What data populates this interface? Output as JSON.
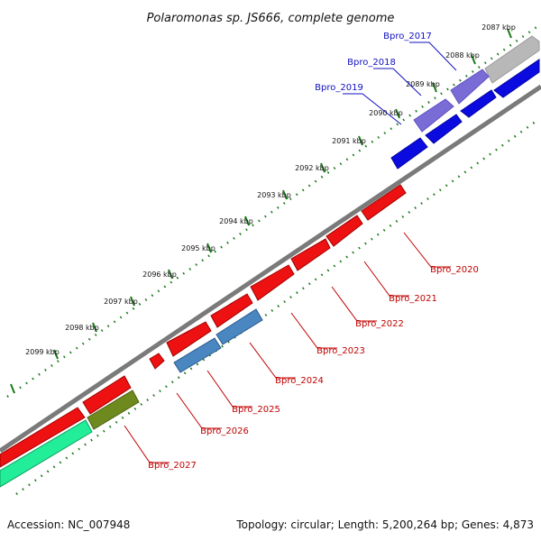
{
  "title": "Polaromonas sp. JS666, complete genome",
  "footer": {
    "accession": "Accession: NC_007948",
    "summary": "Topology: circular; Length: 5,200,264 bp; Genes: 4,873"
  },
  "colors": {
    "backbone": "#7a7a7a",
    "tick": "#1a7a1a",
    "forward_label": "#1010c0",
    "reverse_label": "#c00000"
  },
  "ticks": [
    {
      "label": "2087 kbp"
    },
    {
      "label": "2088 kbp"
    },
    {
      "label": "2089 kbp"
    },
    {
      "label": "2090 kbp"
    },
    {
      "label": "2091 kbp"
    },
    {
      "label": "2092 kbp"
    },
    {
      "label": "2093 kbp"
    },
    {
      "label": "2094 kbp"
    },
    {
      "label": "2095 kbp"
    },
    {
      "label": "2096 kbp"
    },
    {
      "label": "2097 kbp"
    },
    {
      "label": "2098 kbp"
    },
    {
      "label": "2099 kbp"
    }
  ],
  "gene_labels": [
    {
      "text": "Bpro_2017",
      "strand": "forward"
    },
    {
      "text": "Bpro_2018",
      "strand": "forward"
    },
    {
      "text": "Bpro_2019",
      "strand": "forward"
    },
    {
      "text": "Bpro_2020",
      "strand": "reverse"
    },
    {
      "text": "Bpro_2021",
      "strand": "reverse"
    },
    {
      "text": "Bpro_2022",
      "strand": "reverse"
    },
    {
      "text": "Bpro_2023",
      "strand": "reverse"
    },
    {
      "text": "Bpro_2024",
      "strand": "reverse"
    },
    {
      "text": "Bpro_2025",
      "strand": "reverse"
    },
    {
      "text": "Bpro_2026",
      "strand": "reverse"
    },
    {
      "text": "Bpro_2027",
      "strand": "reverse"
    }
  ]
}
